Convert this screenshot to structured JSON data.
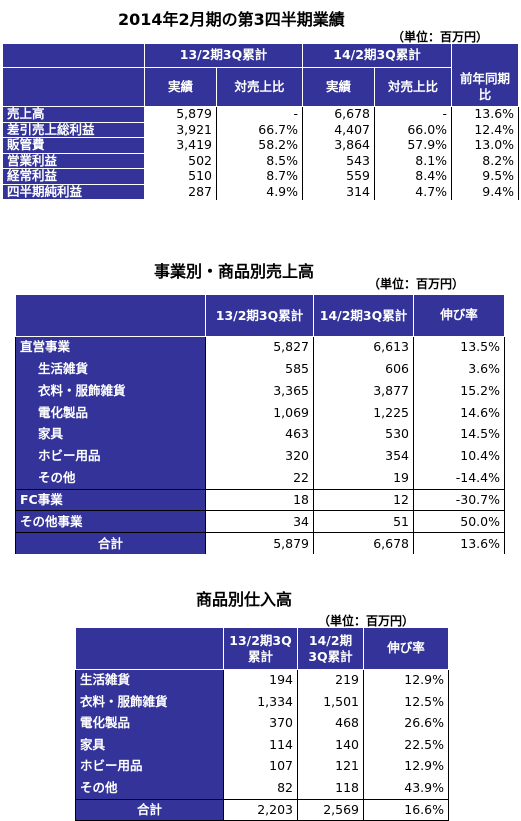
{
  "section1": {
    "title": "2014年2月期の第3四半期業績",
    "unit": "（単位：百万円）",
    "group1": "13/2期3Q累計",
    "group2": "14/2期3Q累計",
    "col_actual": "実績",
    "col_ratio": "対売上比",
    "col_yoy": "前年同期比",
    "rows": [
      {
        "label": "売上高",
        "a1": "5,879",
        "r1": "-",
        "a2": "6,678",
        "r2": "-",
        "yoy": "13.6%"
      },
      {
        "label": "差引売上総利益",
        "a1": "3,921",
        "r1": "66.7%",
        "a2": "4,407",
        "r2": "66.0%",
        "yoy": "12.4%"
      },
      {
        "label": "販管費",
        "a1": "3,419",
        "r1": "58.2%",
        "a2": "3,864",
        "r2": "57.9%",
        "yoy": "13.0%"
      },
      {
        "label": "営業利益",
        "a1": "502",
        "r1": "8.5%",
        "a2": "543",
        "r2": "8.1%",
        "yoy": "8.2%"
      },
      {
        "label": "経常利益",
        "a1": "510",
        "r1": "8.7%",
        "a2": "559",
        "r2": "8.4%",
        "yoy": "9.5%"
      },
      {
        "label": "四半期純利益",
        "a1": "287",
        "r1": "4.9%",
        "a2": "314",
        "r2": "4.7%",
        "yoy": "9.4%"
      }
    ]
  },
  "section2": {
    "title": "事業別・商品別売上高",
    "unit": "（単位：百万円）",
    "col1": "13/2期3Q累計",
    "col2": "14/2期3Q累計",
    "col3": "伸び率",
    "rows": [
      {
        "label": "直営事業",
        "v1": "5,827",
        "v2": "6,613",
        "g": "13.5%"
      },
      {
        "label": "生活雑貨",
        "v1": "585",
        "v2": "606",
        "g": "3.6%"
      },
      {
        "label": "衣料・服飾雑貨",
        "v1": "3,365",
        "v2": "3,877",
        "g": "15.2%"
      },
      {
        "label": "電化製品",
        "v1": "1,069",
        "v2": "1,225",
        "g": "14.6%"
      },
      {
        "label": "家具",
        "v1": "463",
        "v2": "530",
        "g": "14.5%"
      },
      {
        "label": "ホビー用品",
        "v1": "320",
        "v2": "354",
        "g": "10.4%"
      },
      {
        "label": "その他",
        "v1": "22",
        "v2": "19",
        "g": "-14.4%"
      },
      {
        "label": "FC事業",
        "v1": "18",
        "v2": "12",
        "g": "-30.7%"
      },
      {
        "label": "その他事業",
        "v1": "34",
        "v2": "51",
        "g": "50.0%"
      },
      {
        "label": "合計",
        "v1": "5,879",
        "v2": "6,678",
        "g": "13.6%"
      }
    ]
  },
  "section3": {
    "title": "商品別仕入高",
    "unit": "（単位：百万円）",
    "col1": "13/2期3Q累計",
    "col2": "14/2期3Q累計",
    "col3": "伸び率",
    "rows": [
      {
        "label": "生活雑貨",
        "v1": "194",
        "v2": "219",
        "g": "12.9%"
      },
      {
        "label": "衣料・服飾雑貨",
        "v1": "1,334",
        "v2": "1,501",
        "g": "12.5%"
      },
      {
        "label": "電化製品",
        "v1": "370",
        "v2": "468",
        "g": "26.6%"
      },
      {
        "label": "家具",
        "v1": "114",
        "v2": "140",
        "g": "22.5%"
      },
      {
        "label": "ホビー用品",
        "v1": "107",
        "v2": "121",
        "g": "12.9%"
      },
      {
        "label": "その他",
        "v1": "82",
        "v2": "118",
        "g": "43.9%"
      },
      {
        "label": "合計",
        "v1": "2,203",
        "v2": "2,569",
        "g": "16.6%"
      }
    ]
  },
  "colors": {
    "header_bg": "#333399",
    "header_text": "#ffffff"
  }
}
